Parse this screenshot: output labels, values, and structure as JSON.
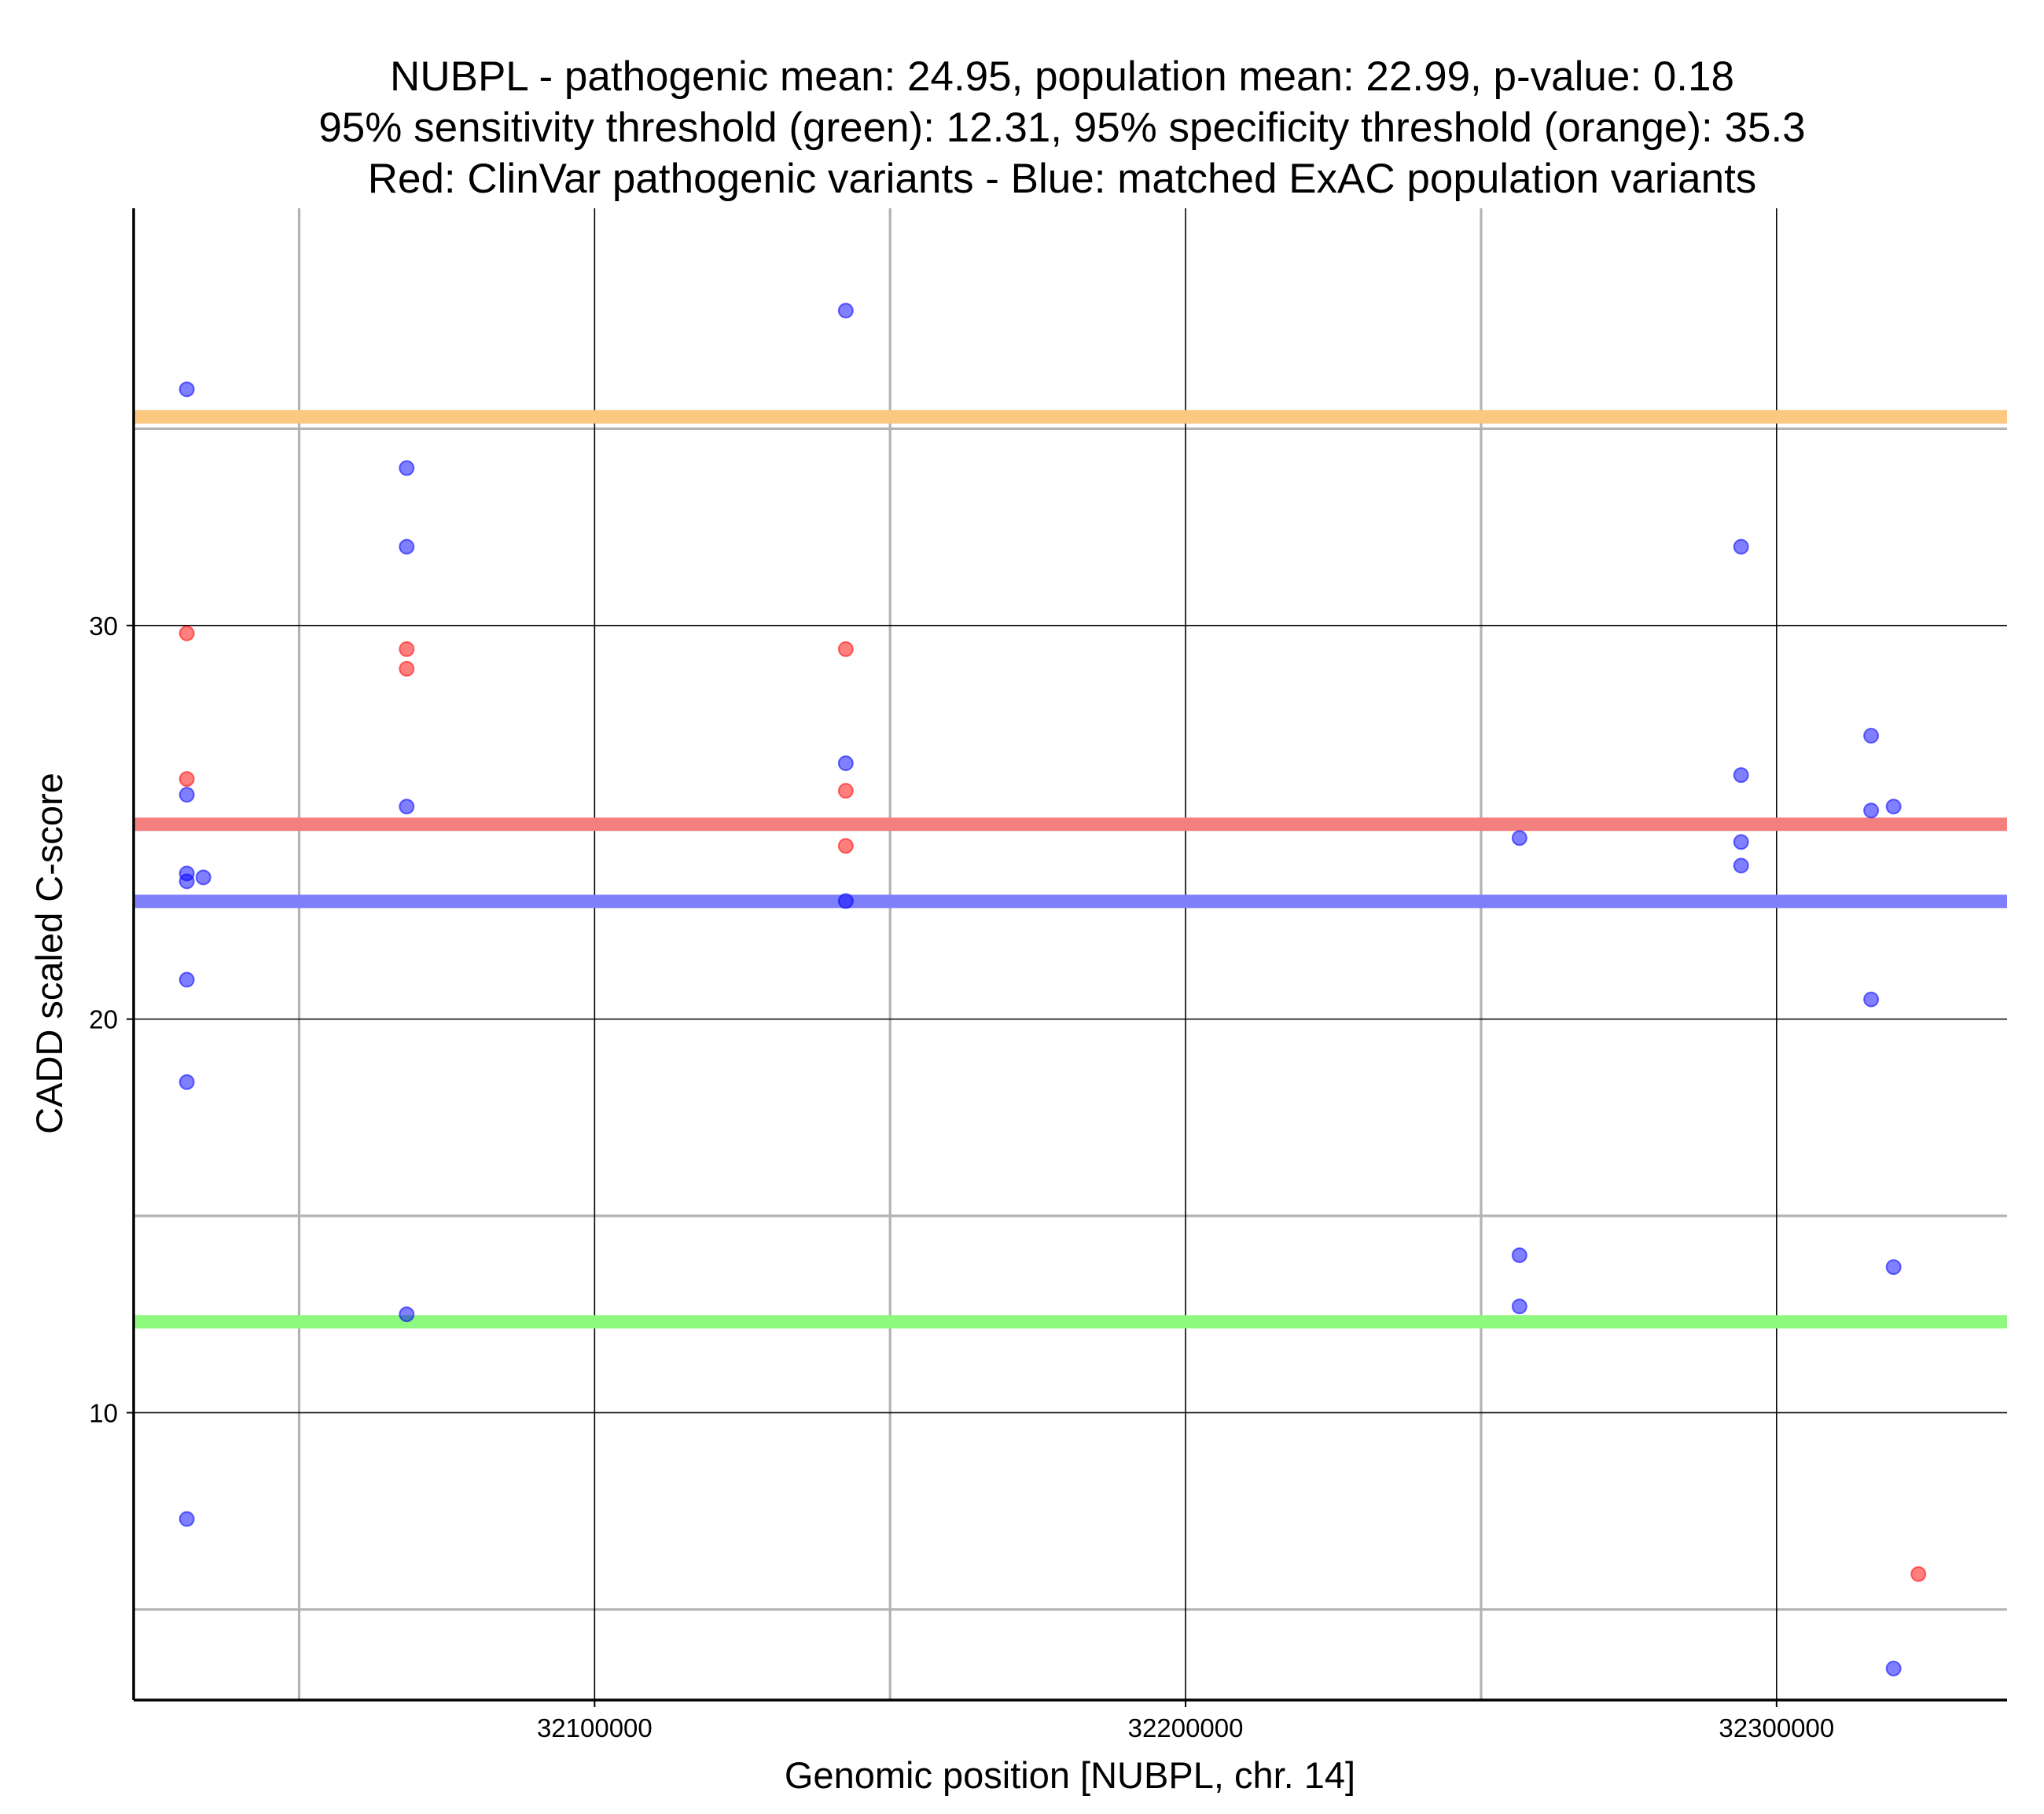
{
  "chart_data": {
    "type": "scatter",
    "title_lines": [
      "NUBPL - pathogenic mean: 24.95, population mean: 22.99, p-value: 0.18",
      "95% sensitivity threshold (green): 12.31, 95% specificity threshold (orange): 35.3",
      "Red: ClinVar pathogenic variants - Blue: matched ExAC population variants"
    ],
    "xlabel": "Genomic position [NUBPL, chr. 14]",
    "ylabel": "CADD scaled C-score",
    "xlim": [
      32022000,
      32339000
    ],
    "ylim": [
      2.7,
      40.6
    ],
    "x_ticks": [
      {
        "value": 32100000,
        "label": "32100000"
      },
      {
        "value": 32200000,
        "label": "32200000"
      },
      {
        "value": 32300000,
        "label": "32300000"
      }
    ],
    "y_ticks": [
      {
        "value": 10,
        "label": "10"
      },
      {
        "value": 20,
        "label": "20"
      },
      {
        "value": 30,
        "label": "30"
      }
    ],
    "x_minor_grid": [
      32050000,
      32150000,
      32250000
    ],
    "y_minor_grid": [
      5,
      15,
      35
    ],
    "hlines": [
      {
        "name": "specificity-threshold",
        "value": 35.3,
        "color": "#fcc77f"
      },
      {
        "name": "pathogenic-mean",
        "value": 24.95,
        "color": "#f47f7f"
      },
      {
        "name": "population-mean",
        "value": 22.99,
        "color": "#7f7ffb"
      },
      {
        "name": "sensitivity-threshold",
        "value": 12.31,
        "color": "#8ff87f"
      }
    ],
    "series": [
      {
        "name": "ClinVar pathogenic variants",
        "color": "#ff0000",
        "points": [
          {
            "x": 32031000,
            "y": 29.8
          },
          {
            "x": 32031000,
            "y": 26.1
          },
          {
            "x": 32068200,
            "y": 29.4
          },
          {
            "x": 32068200,
            "y": 28.9
          },
          {
            "x": 32142500,
            "y": 29.4
          },
          {
            "x": 32142500,
            "y": 25.8
          },
          {
            "x": 32142500,
            "y": 24.4
          },
          {
            "x": 32324000,
            "y": 5.9
          }
        ]
      },
      {
        "name": "matched ExAC population variants",
        "color": "#0000ff",
        "points": [
          {
            "x": 32031000,
            "y": 36.0
          },
          {
            "x": 32031000,
            "y": 25.7
          },
          {
            "x": 32031000,
            "y": 23.7
          },
          {
            "x": 32031000,
            "y": 23.5
          },
          {
            "x": 32033800,
            "y": 23.6
          },
          {
            "x": 32031000,
            "y": 21.0
          },
          {
            "x": 32031000,
            "y": 18.4
          },
          {
            "x": 32031000,
            "y": 7.3
          },
          {
            "x": 32068200,
            "y": 34.0
          },
          {
            "x": 32068200,
            "y": 32.0
          },
          {
            "x": 32068200,
            "y": 25.4
          },
          {
            "x": 32068200,
            "y": 12.5
          },
          {
            "x": 32142500,
            "y": 38.0
          },
          {
            "x": 32142500,
            "y": 26.5
          },
          {
            "x": 32142500,
            "y": 23.0
          },
          {
            "x": 32256500,
            "y": 24.6
          },
          {
            "x": 32256500,
            "y": 14.0
          },
          {
            "x": 32256500,
            "y": 12.7
          },
          {
            "x": 32294000,
            "y": 32.0
          },
          {
            "x": 32294000,
            "y": 26.2
          },
          {
            "x": 32294000,
            "y": 24.5
          },
          {
            "x": 32294000,
            "y": 23.9
          },
          {
            "x": 32316000,
            "y": 27.2
          },
          {
            "x": 32316000,
            "y": 25.3
          },
          {
            "x": 32316000,
            "y": 20.5
          },
          {
            "x": 32319800,
            "y": 25.4
          },
          {
            "x": 32319800,
            "y": 13.7
          },
          {
            "x": 32319800,
            "y": 3.5
          }
        ]
      }
    ]
  }
}
